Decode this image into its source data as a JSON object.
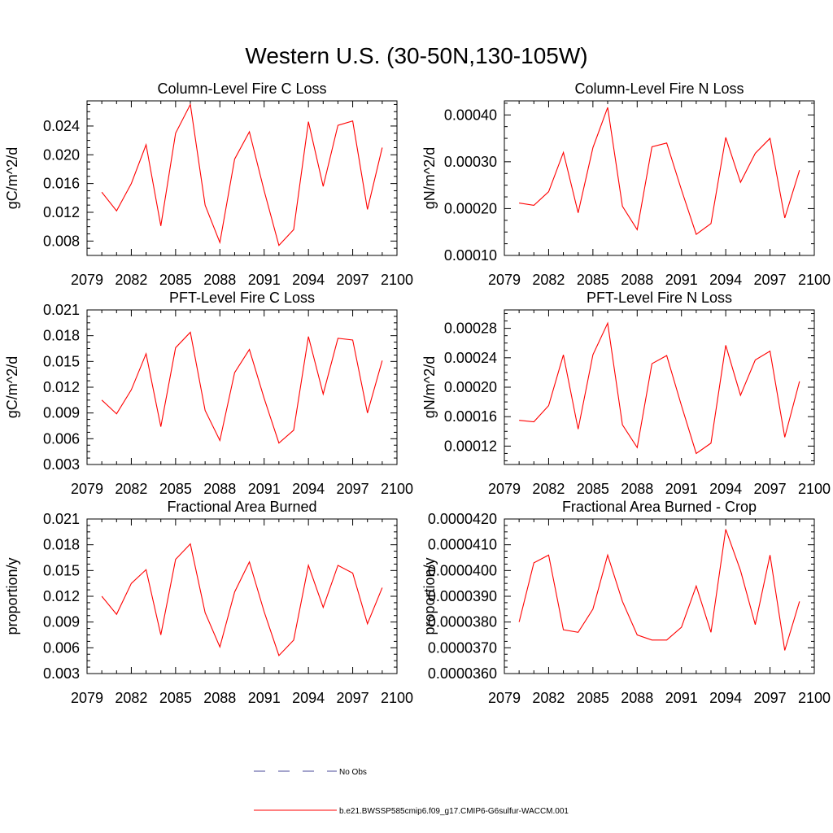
{
  "figure": {
    "title": "Western U.S. (30-50N,130-105W)"
  },
  "legend": {
    "entries": [
      {
        "label": "No Obs",
        "style": "dashed",
        "color": "#4a4a9a"
      },
      {
        "label": "b.e21.BWSSP585cmip6.f09_g17.CMIP6-G6sulfur-WACCM.001",
        "style": "solid",
        "color": "#ff0000"
      }
    ]
  },
  "chart_data": [
    {
      "type": "line",
      "title": "Column-Level Fire C Loss",
      "ylabel": "gC/m^2/d",
      "xlim": [
        2079,
        2100
      ],
      "xticks": [
        2079,
        2082,
        2085,
        2088,
        2091,
        2094,
        2097,
        2100
      ],
      "ylim": [
        0.006,
        0.0275
      ],
      "yticks": [
        0.008,
        0.012,
        0.016,
        0.02,
        0.024
      ],
      "ytick_labels": [
        "0.008",
        "0.012",
        "0.016",
        "0.020",
        "0.024"
      ],
      "series": [
        {
          "color": "#ff0000",
          "x": [
            2080,
            2081,
            2082,
            2083,
            2084,
            2085,
            2086,
            2087,
            2088,
            2089,
            2090,
            2091,
            2092,
            2093,
            2094,
            2095,
            2096,
            2097,
            2098,
            2099
          ],
          "values": [
            0.0148,
            0.0122,
            0.016,
            0.0214,
            0.0101,
            0.023,
            0.027,
            0.013,
            0.0078,
            0.0194,
            0.0232,
            0.015,
            0.0074,
            0.0096,
            0.0246,
            0.0156,
            0.0241,
            0.0247,
            0.0124,
            0.021
          ]
        }
      ]
    },
    {
      "type": "line",
      "title": "Column-Level Fire N Loss",
      "ylabel": "gN/m^2/d",
      "xlim": [
        2079,
        2100
      ],
      "xticks": [
        2079,
        2082,
        2085,
        2088,
        2091,
        2094,
        2097,
        2100
      ],
      "ylim": [
        0.0001,
        0.00043
      ],
      "yticks": [
        0.0001,
        0.0002,
        0.0003,
        0.0004
      ],
      "ytick_labels": [
        "0.00010",
        "0.00020",
        "0.00030",
        "0.00040"
      ],
      "series": [
        {
          "color": "#ff0000",
          "x": [
            2080,
            2081,
            2082,
            2083,
            2084,
            2085,
            2086,
            2087,
            2088,
            2089,
            2090,
            2091,
            2092,
            2093,
            2094,
            2095,
            2096,
            2097,
            2098,
            2099
          ],
          "values": [
            0.000212,
            0.000207,
            0.000236,
            0.00032,
            0.000191,
            0.00033,
            0.000416,
            0.000205,
            0.000155,
            0.000332,
            0.00034,
            0.00024,
            0.000145,
            0.000168,
            0.000352,
            0.000256,
            0.000318,
            0.00035,
            0.00018,
            0.000282
          ]
        }
      ]
    },
    {
      "type": "line",
      "title": "PFT-Level Fire C Loss",
      "ylabel": "gC/m^2/d",
      "xlim": [
        2079,
        2100
      ],
      "xticks": [
        2079,
        2082,
        2085,
        2088,
        2091,
        2094,
        2097,
        2100
      ],
      "ylim": [
        0.003,
        0.021
      ],
      "yticks": [
        0.003,
        0.006,
        0.009,
        0.012,
        0.015,
        0.018,
        0.021
      ],
      "ytick_labels": [
        "0.003",
        "0.006",
        "0.009",
        "0.012",
        "0.015",
        "0.018",
        "0.021"
      ],
      "series": [
        {
          "color": "#ff0000",
          "x": [
            2080,
            2081,
            2082,
            2083,
            2084,
            2085,
            2086,
            2087,
            2088,
            2089,
            2090,
            2091,
            2092,
            2093,
            2094,
            2095,
            2096,
            2097,
            2098,
            2099
          ],
          "values": [
            0.0105,
            0.0089,
            0.0117,
            0.0159,
            0.0074,
            0.0166,
            0.0184,
            0.0093,
            0.0058,
            0.0137,
            0.0164,
            0.0107,
            0.0055,
            0.007,
            0.0179,
            0.0112,
            0.0177,
            0.0175,
            0.009,
            0.0151
          ]
        }
      ]
    },
    {
      "type": "line",
      "title": "PFT-Level Fire N Loss",
      "ylabel": "gN/m^2/d",
      "xlim": [
        2079,
        2100
      ],
      "xticks": [
        2079,
        2082,
        2085,
        2088,
        2091,
        2094,
        2097,
        2100
      ],
      "ylim": [
        9.5e-05,
        0.000305
      ],
      "yticks": [
        0.00012,
        0.00016,
        0.0002,
        0.00024,
        0.00028
      ],
      "ytick_labels": [
        "0.00012",
        "0.00016",
        "0.00020",
        "0.00024",
        "0.00028"
      ],
      "series": [
        {
          "color": "#ff0000",
          "x": [
            2080,
            2081,
            2082,
            2083,
            2084,
            2085,
            2086,
            2087,
            2088,
            2089,
            2090,
            2091,
            2092,
            2093,
            2094,
            2095,
            2096,
            2097,
            2098,
            2099
          ],
          "values": [
            0.000155,
            0.000153,
            0.000175,
            0.000244,
            0.000143,
            0.000244,
            0.000287,
            0.000149,
            0.000118,
            0.000232,
            0.000243,
            0.000175,
            0.00011,
            0.000124,
            0.000257,
            0.000189,
            0.000237,
            0.000249,
            0.000132,
            0.000208
          ]
        }
      ]
    },
    {
      "type": "line",
      "title": "Fractional Area Burned",
      "ylabel": "proportion/y",
      "xlim": [
        2079,
        2100
      ],
      "xticks": [
        2079,
        2082,
        2085,
        2088,
        2091,
        2094,
        2097,
        2100
      ],
      "ylim": [
        0.003,
        0.021
      ],
      "yticks": [
        0.003,
        0.006,
        0.009,
        0.012,
        0.015,
        0.018,
        0.021
      ],
      "ytick_labels": [
        "0.003",
        "0.006",
        "0.009",
        "0.012",
        "0.015",
        "0.018",
        "0.021"
      ],
      "series": [
        {
          "color": "#ff0000",
          "x": [
            2080,
            2081,
            2082,
            2083,
            2084,
            2085,
            2086,
            2087,
            2088,
            2089,
            2090,
            2091,
            2092,
            2093,
            2094,
            2095,
            2096,
            2097,
            2098,
            2099
          ],
          "values": [
            0.012,
            0.0099,
            0.0135,
            0.0151,
            0.0075,
            0.0163,
            0.0181,
            0.0101,
            0.0061,
            0.0125,
            0.016,
            0.0102,
            0.0051,
            0.0069,
            0.0156,
            0.0107,
            0.0156,
            0.0147,
            0.0088,
            0.013
          ]
        }
      ]
    },
    {
      "type": "line",
      "title": "Fractional Area Burned - Crop",
      "ylabel": "proportion/y",
      "xlim": [
        2079,
        2100
      ],
      "xticks": [
        2079,
        2082,
        2085,
        2088,
        2091,
        2094,
        2097,
        2100
      ],
      "ylim": [
        3.6e-05,
        4.2e-05
      ],
      "yticks": [
        3.6e-05,
        3.7e-05,
        3.8e-05,
        3.9e-05,
        4e-05,
        4.1e-05,
        4.2e-05
      ],
      "ytick_labels": [
        "0.0000360",
        "0.0000370",
        "0.0000380",
        "0.0000390",
        "0.0000400",
        "0.0000410",
        "0.0000420"
      ],
      "series": [
        {
          "color": "#ff0000",
          "x": [
            2080,
            2081,
            2082,
            2083,
            2084,
            2085,
            2086,
            2087,
            2088,
            2089,
            2090,
            2091,
            2092,
            2093,
            2094,
            2095,
            2096,
            2097,
            2098,
            2099
          ],
          "values": [
            3.8e-05,
            4.03e-05,
            4.06e-05,
            3.77e-05,
            3.76e-05,
            3.85e-05,
            4.06e-05,
            3.88e-05,
            3.75e-05,
            3.73e-05,
            3.73e-05,
            3.78e-05,
            3.94e-05,
            3.76e-05,
            4.16e-05,
            4e-05,
            3.79e-05,
            4.06e-05,
            3.69e-05,
            3.88e-05
          ]
        }
      ]
    }
  ]
}
